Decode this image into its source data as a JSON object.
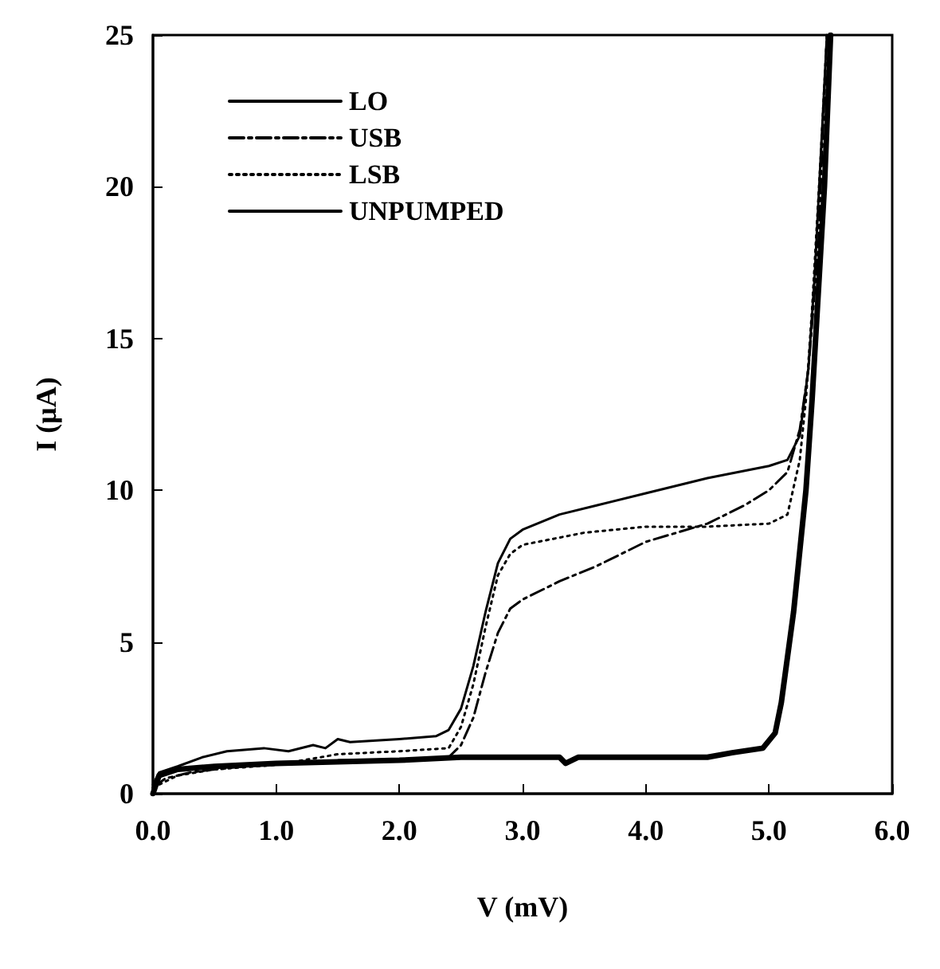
{
  "chart_data": {
    "type": "line",
    "xlabel": "V (mV)",
    "ylabel": "I (μA)",
    "xlim": [
      0,
      6
    ],
    "ylim": [
      0,
      25
    ],
    "xticks": [
      {
        "value": 0,
        "label": "0.0"
      },
      {
        "value": 1,
        "label": "1.0"
      },
      {
        "value": 2,
        "label": "2.0"
      },
      {
        "value": 3,
        "label": "3.0"
      },
      {
        "value": 4,
        "label": "4.0"
      },
      {
        "value": 5,
        "label": "5.0"
      },
      {
        "value": 6,
        "label": "6.0"
      }
    ],
    "yticks": [
      0,
      5,
      10,
      15,
      20,
      25
    ],
    "grid": false,
    "legend": "top left",
    "marker": "none",
    "series": [
      {
        "name": "LO",
        "color": "#000000",
        "line_style": "solid",
        "x": [
          0,
          0.05,
          0.2,
          0.4,
          0.6,
          0.9,
          1.1,
          1.3,
          1.4,
          1.5,
          1.6,
          2.0,
          2.3,
          2.4,
          2.5,
          2.6,
          2.7,
          2.8,
          2.9,
          3.0,
          3.3,
          3.6,
          4.0,
          4.5,
          5.0,
          5.15,
          5.25,
          5.32,
          5.37,
          5.42,
          5.47
        ],
        "values": [
          0.3,
          0.7,
          0.9,
          1.2,
          1.4,
          1.5,
          1.4,
          1.6,
          1.5,
          1.8,
          1.7,
          1.8,
          1.9,
          2.1,
          2.8,
          4.2,
          6.0,
          7.6,
          8.4,
          8.7,
          9.2,
          9.5,
          9.9,
          10.4,
          10.8,
          11.0,
          11.8,
          14,
          17,
          21,
          25
        ]
      },
      {
        "name": "USB",
        "color": "#000000",
        "line_style": "dashed",
        "x": [
          0,
          0.1,
          0.3,
          0.5,
          1,
          1.5,
          2.0,
          2.4,
          2.5,
          2.6,
          2.7,
          2.8,
          2.9,
          3.0,
          3.3,
          3.6,
          4.0,
          4.5,
          4.8,
          5.0,
          5.15,
          5.25,
          5.32,
          5.4,
          5.47
        ],
        "values": [
          0.2,
          0.5,
          0.7,
          0.8,
          1.0,
          1.1,
          1.1,
          1.2,
          1.6,
          2.5,
          4.0,
          5.3,
          6.1,
          6.4,
          7.0,
          7.5,
          8.3,
          8.9,
          9.5,
          10.0,
          10.6,
          12,
          14,
          18,
          25
        ]
      },
      {
        "name": "LSB",
        "color": "#000000",
        "line_style": "dotted",
        "x": [
          0,
          0.2,
          0.5,
          1,
          1.5,
          2.0,
          2.4,
          2.5,
          2.6,
          2.7,
          2.8,
          2.9,
          3.0,
          3.5,
          4.0,
          4.5,
          5.0,
          5.15,
          5.25,
          5.3,
          5.35,
          5.42,
          5.47
        ],
        "values": [
          0.2,
          0.6,
          0.8,
          0.95,
          1.3,
          1.4,
          1.5,
          2.2,
          3.6,
          5.5,
          7.2,
          7.9,
          8.2,
          8.6,
          8.8,
          8.8,
          8.9,
          9.2,
          11,
          13,
          16,
          21,
          25
        ]
      },
      {
        "name": "UNPUMPED",
        "color": "#000000",
        "line_style": "solid",
        "x": [
          0,
          0.05,
          0.2,
          0.5,
          1,
          1.5,
          2,
          2.5,
          3.0,
          3.3,
          3.35,
          3.45,
          4,
          4.5,
          4.7,
          4.95,
          5.05,
          5.1,
          5.2,
          5.3,
          5.35,
          5.45,
          5.5
        ],
        "values": [
          0,
          0.6,
          0.8,
          0.9,
          1.0,
          1.05,
          1.1,
          1.2,
          1.2,
          1.2,
          1.0,
          1.2,
          1.2,
          1.2,
          1.35,
          1.5,
          2.0,
          3.0,
          6.0,
          10,
          13,
          20,
          25
        ]
      }
    ]
  }
}
